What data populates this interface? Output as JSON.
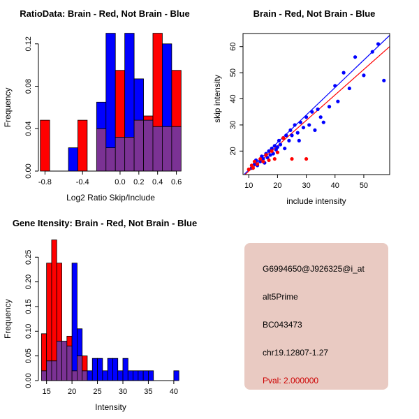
{
  "colors": {
    "red": "#FF0000",
    "blue": "#0000FF",
    "overlap": "#7B3294",
    "background": "#FFFFFF"
  },
  "chart_data": [
    {
      "type": "bar",
      "id": "ratio-hist",
      "title": "RatioData: Brain - Red, Not Brain - Blue",
      "xlabel": "Log2 Ratio Skip/Include",
      "ylabel": "Frequency",
      "xlim": [
        -0.87,
        0.67
      ],
      "ylim": [
        0,
        0.135
      ],
      "xticks": [
        {
          "v": -0.8,
          "l": "-0.8"
        },
        {
          "v": -0.4,
          "l": "-0.4"
        },
        {
          "v": 0.0,
          "l": "0.0"
        },
        {
          "v": 0.2,
          "l": "0.2"
        },
        {
          "v": 0.4,
          "l": "0.4"
        },
        {
          "v": 0.6,
          "l": "0.6"
        }
      ],
      "yticks": [
        {
          "v": 0.0,
          "l": "0.00"
        },
        {
          "v": 0.04,
          "l": "0.04"
        },
        {
          "v": 0.08,
          "l": "0.08"
        },
        {
          "v": 0.12,
          "l": "0.12"
        }
      ],
      "bin_width": 0.1,
      "series_legend": {
        "red": "Brain",
        "blue": "Not Brain"
      },
      "bins": [
        {
          "x0": -0.85,
          "red": 0.048,
          "blue": 0
        },
        {
          "x0": -0.55,
          "red": 0,
          "blue": 0.022
        },
        {
          "x0": -0.45,
          "red": 0.048,
          "blue": 0
        },
        {
          "x0": -0.25,
          "red": 0.04,
          "blue": 0.065
        },
        {
          "x0": -0.15,
          "red": 0.022,
          "blue": 0.13
        },
        {
          "x0": -0.05,
          "red": 0.095,
          "blue": 0.032
        },
        {
          "x0": 0.05,
          "red": 0.032,
          "blue": 0.13
        },
        {
          "x0": 0.15,
          "red": 0.048,
          "blue": 0.087
        },
        {
          "x0": 0.25,
          "red": 0.052,
          "blue": 0.048
        },
        {
          "x0": 0.35,
          "red": 0.13,
          "blue": 0.042
        },
        {
          "x0": 0.45,
          "red": 0.042,
          "blue": 0.12
        },
        {
          "x0": 0.55,
          "red": 0.095,
          "blue": 0.042
        }
      ]
    },
    {
      "type": "scatter",
      "id": "intensity-scatter",
      "title": "Brain - Red, Not Brain - Blue",
      "xlabel": "include intensity",
      "ylabel": "skip intensity",
      "xlim": [
        8,
        59
      ],
      "ylim": [
        11,
        65
      ],
      "xticks": [
        {
          "v": 10,
          "l": "10"
        },
        {
          "v": 20,
          "l": "20"
        },
        {
          "v": 30,
          "l": "30"
        },
        {
          "v": 40,
          "l": "40"
        },
        {
          "v": 50,
          "l": "50"
        }
      ],
      "yticks": [
        {
          "v": 20,
          "l": "20"
        },
        {
          "v": 30,
          "l": "30"
        },
        {
          "v": 40,
          "l": "40"
        },
        {
          "v": 50,
          "l": "50"
        },
        {
          "v": 60,
          "l": "60"
        }
      ],
      "blue_points": [
        [
          11,
          13.5
        ],
        [
          12,
          15
        ],
        [
          12.5,
          16.5
        ],
        [
          13,
          14.5
        ],
        [
          14,
          16
        ],
        [
          14.5,
          18
        ],
        [
          15,
          17
        ],
        [
          15.5,
          15.5
        ],
        [
          16,
          19
        ],
        [
          16.5,
          17.5
        ],
        [
          17,
          20
        ],
        [
          17.5,
          18.5
        ],
        [
          18,
          21
        ],
        [
          18.5,
          19
        ],
        [
          19,
          22
        ],
        [
          19.5,
          20.5
        ],
        [
          20,
          21.5
        ],
        [
          20.5,
          24
        ],
        [
          21,
          22.5
        ],
        [
          22,
          25
        ],
        [
          22.5,
          21
        ],
        [
          23,
          26
        ],
        [
          24,
          24
        ],
        [
          24.5,
          28
        ],
        [
          25,
          26
        ],
        [
          26,
          30
        ],
        [
          27,
          27
        ],
        [
          27.5,
          24
        ],
        [
          28,
          31
        ],
        [
          29,
          29
        ],
        [
          30,
          33
        ],
        [
          31,
          30
        ],
        [
          32,
          35
        ],
        [
          33,
          28
        ],
        [
          34,
          36
        ],
        [
          35,
          33
        ],
        [
          36,
          31
        ],
        [
          38,
          37
        ],
        [
          40,
          45
        ],
        [
          41,
          39
        ],
        [
          43,
          50
        ],
        [
          45,
          44
        ],
        [
          47,
          56
        ],
        [
          50,
          49
        ],
        [
          53,
          58
        ],
        [
          55,
          61
        ],
        [
          57,
          47
        ]
      ],
      "red_points": [
        [
          10,
          13
        ],
        [
          11,
          14.5
        ],
        [
          11.5,
          13.5
        ],
        [
          12,
          16
        ],
        [
          13,
          15
        ],
        [
          14,
          17
        ],
        [
          15,
          16
        ],
        [
          16,
          18.5
        ],
        [
          17,
          16.5
        ],
        [
          18,
          20
        ],
        [
          19,
          17
        ],
        [
          20,
          19.5
        ],
        [
          22,
          25
        ],
        [
          25,
          17
        ],
        [
          30,
          17
        ]
      ],
      "blue_line": {
        "x1": 8.5,
        "y1": 11.2,
        "x2": 59,
        "y2": 64.3
      },
      "red_line": {
        "x1": 8.5,
        "y1": 10.8,
        "x2": 59,
        "y2": 60
      }
    },
    {
      "type": "bar",
      "id": "gene-hist",
      "title": "Gene Itensity: Brain - Red, Not Brain - Blue",
      "xlabel": "Intensity",
      "ylabel": "Frequency",
      "xlim": [
        13.4,
        41.8
      ],
      "ylim": [
        0,
        0.29
      ],
      "xticks": [
        {
          "v": 15,
          "l": "15"
        },
        {
          "v": 20,
          "l": "20"
        },
        {
          "v": 25,
          "l": "25"
        },
        {
          "v": 30,
          "l": "30"
        },
        {
          "v": 35,
          "l": "35"
        },
        {
          "v": 40,
          "l": "40"
        }
      ],
      "yticks": [
        {
          "v": 0.0,
          "l": "0.00"
        },
        {
          "v": 0.05,
          "l": "0.05"
        },
        {
          "v": 0.1,
          "l": "0.10"
        },
        {
          "v": 0.15,
          "l": "0.15"
        },
        {
          "v": 0.2,
          "l": "0.20"
        },
        {
          "v": 0.25,
          "l": "0.25"
        }
      ],
      "bin_width": 1,
      "series_legend": {
        "red": "Brain",
        "blue": "Not Brain"
      },
      "bins": [
        {
          "x0": 14,
          "red": 0.095,
          "blue": 0.02
        },
        {
          "x0": 15,
          "red": 0.238,
          "blue": 0.04
        },
        {
          "x0": 16,
          "red": 0.285,
          "blue": 0.04
        },
        {
          "x0": 17,
          "red": 0.238,
          "blue": 0.08
        },
        {
          "x0": 18,
          "red": 0.08,
          "blue": 0.08
        },
        {
          "x0": 19,
          "red": 0.09,
          "blue": 0.07
        },
        {
          "x0": 20,
          "red": 0.02,
          "blue": 0.238
        },
        {
          "x0": 21,
          "red": 0.05,
          "blue": 0.105
        },
        {
          "x0": 22,
          "red": 0.05,
          "blue": 0.02
        },
        {
          "x0": 23,
          "red": 0,
          "blue": 0.02
        },
        {
          "x0": 24,
          "red": 0,
          "blue": 0.045
        },
        {
          "x0": 25,
          "red": 0,
          "blue": 0.045
        },
        {
          "x0": 26,
          "red": 0,
          "blue": 0.02
        },
        {
          "x0": 27,
          "red": 0,
          "blue": 0.045
        },
        {
          "x0": 28,
          "red": 0,
          "blue": 0.045
        },
        {
          "x0": 29,
          "red": 0,
          "blue": 0.02
        },
        {
          "x0": 30,
          "red": 0,
          "blue": 0.045
        },
        {
          "x0": 31,
          "red": 0,
          "blue": 0.02
        },
        {
          "x0": 32,
          "red": 0,
          "blue": 0.02
        },
        {
          "x0": 33,
          "red": 0,
          "blue": 0.02
        },
        {
          "x0": 34,
          "red": 0,
          "blue": 0.02
        },
        {
          "x0": 35,
          "red": 0,
          "blue": 0.02
        },
        {
          "x0": 40,
          "red": 0,
          "blue": 0.02
        }
      ]
    }
  ],
  "info_panel": {
    "bg_color": "#E9CAC2",
    "text_color": "#000000",
    "pval_color": "#CC0000",
    "lines": [
      "G6994650@J926325@i_at",
      "alt5Prime",
      "BC043473",
      "chr19.12807-1.27"
    ],
    "pval": "Pval: 2.000000"
  }
}
